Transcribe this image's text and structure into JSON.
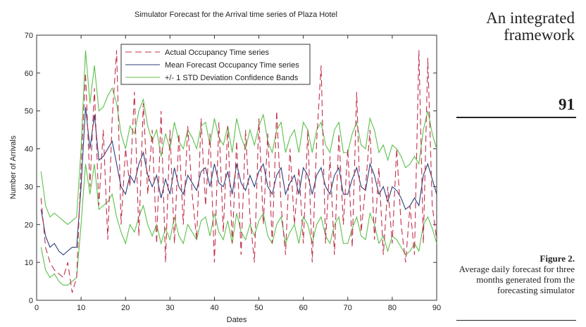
{
  "chart_data": {
    "type": "line",
    "title": "Simulator Forecast for the Arrival time series of Plaza Hotel",
    "xlabel": "Dates",
    "ylabel": "Number of Arrivals",
    "xlim": [
      0,
      90
    ],
    "xticks": [
      0,
      10,
      20,
      30,
      40,
      50,
      60,
      70,
      80,
      90
    ],
    "ylim": [
      0,
      70
    ],
    "yticks": [
      0,
      10,
      20,
      30,
      40,
      50,
      60,
      70
    ],
    "x": [
      1,
      2,
      3,
      4,
      5,
      6,
      7,
      8,
      9,
      10,
      11,
      12,
      13,
      14,
      15,
      16,
      17,
      18,
      19,
      20,
      21,
      22,
      23,
      24,
      25,
      26,
      27,
      28,
      29,
      30,
      31,
      32,
      33,
      34,
      35,
      36,
      37,
      38,
      39,
      40,
      41,
      42,
      43,
      44,
      45,
      46,
      47,
      48,
      49,
      50,
      51,
      52,
      53,
      54,
      55,
      56,
      57,
      58,
      59,
      60,
      61,
      62,
      63,
      64,
      65,
      66,
      67,
      68,
      69,
      70,
      71,
      72,
      73,
      74,
      75,
      76,
      77,
      78,
      79,
      80,
      81,
      82,
      83,
      84,
      85,
      86,
      87,
      88,
      89,
      90
    ],
    "series": [
      {
        "name": "Actual Occupancy Time series",
        "color": "#c0304a",
        "dashed": true,
        "values": [
          27,
          14,
          10,
          8,
          7,
          6,
          10,
          2,
          6,
          35,
          60,
          30,
          56,
          25,
          45,
          16,
          48,
          66,
          20,
          40,
          30,
          55,
          17,
          52,
          28,
          45,
          15,
          50,
          10,
          45,
          15,
          44,
          20,
          46,
          28,
          16,
          48,
          25,
          44,
          10,
          47,
          18,
          46,
          15,
          42,
          12,
          45,
          22,
          10,
          48,
          20,
          44,
          15,
          50,
          25,
          12,
          40,
          20,
          35,
          15,
          45,
          10,
          42,
          62,
          15,
          38,
          12,
          44,
          20,
          40,
          14,
          55,
          18,
          30,
          45,
          16,
          35,
          12,
          30,
          15,
          40,
          20,
          10,
          25,
          12,
          66,
          15,
          64,
          25,
          16
        ]
      },
      {
        "name": "Mean Forecast Occupancy Time series",
        "color": "#2c3d7a",
        "dashed": false,
        "values": [
          24,
          17,
          14,
          15,
          13,
          12,
          13,
          14,
          14,
          30,
          51,
          40,
          49,
          37,
          38,
          40,
          42,
          36,
          30,
          28,
          33,
          31,
          36,
          39,
          33,
          30,
          33,
          27,
          32,
          28,
          35,
          30,
          28,
          33,
          31,
          29,
          34,
          35,
          30,
          36,
          31,
          30,
          34,
          28,
          36,
          31,
          29,
          33,
          30,
          34,
          36,
          30,
          28,
          33,
          35,
          28,
          31,
          33,
          28,
          35,
          33,
          28,
          33,
          35,
          30,
          28,
          33,
          35,
          28,
          28,
          32,
          35,
          30,
          29,
          36,
          33,
          28,
          30,
          26,
          30,
          29,
          27,
          24,
          25,
          27,
          25,
          33,
          36,
          32,
          28
        ]
      },
      {
        "name": "+/- 1 STD Deviation Confidence Bands",
        "color": "#5cc04a",
        "dashed": false,
        "values": [
          34,
          25,
          22,
          23,
          22,
          21,
          20,
          21,
          22,
          40,
          66,
          52,
          62,
          50,
          51,
          54,
          56,
          52,
          44,
          40,
          46,
          44,
          50,
          53,
          46,
          42,
          45,
          38,
          44,
          40,
          47,
          42,
          40,
          45,
          43,
          40,
          46,
          47,
          41,
          48,
          43,
          41,
          46,
          39,
          48,
          43,
          40,
          45,
          41,
          46,
          49,
          42,
          39,
          45,
          47,
          39,
          43,
          45,
          39,
          47,
          45,
          39,
          45,
          47,
          41,
          39,
          45,
          47,
          39,
          39,
          44,
          47,
          41,
          40,
          48,
          45,
          39,
          41,
          37,
          41,
          40,
          38,
          35,
          36,
          38,
          36,
          45,
          50,
          44,
          40
        ],
        "lower": [
          14,
          8,
          6,
          7,
          5,
          4,
          4,
          5,
          6,
          20,
          36,
          28,
          36,
          24,
          25,
          26,
          28,
          22,
          18,
          15,
          20,
          18,
          22,
          25,
          20,
          17,
          20,
          15,
          19,
          16,
          22,
          17,
          15,
          20,
          18,
          16,
          21,
          22,
          17,
          23,
          18,
          16,
          21,
          15,
          23,
          18,
          16,
          20,
          17,
          21,
          23,
          17,
          15,
          20,
          22,
          15,
          18,
          20,
          15,
          22,
          20,
          15,
          20,
          22,
          17,
          15,
          20,
          22,
          15,
          15,
          19,
          22,
          17,
          16,
          23,
          20,
          15,
          17,
          13,
          17,
          16,
          14,
          12,
          13,
          15,
          13,
          20,
          22,
          19,
          15
        ]
      }
    ]
  },
  "margin": {
    "running_head": "An integrated framework",
    "page_number": "91",
    "figure_label": "Figure 2.",
    "caption": "Average daily forecast for three months generated from the forecasting simulator"
  }
}
